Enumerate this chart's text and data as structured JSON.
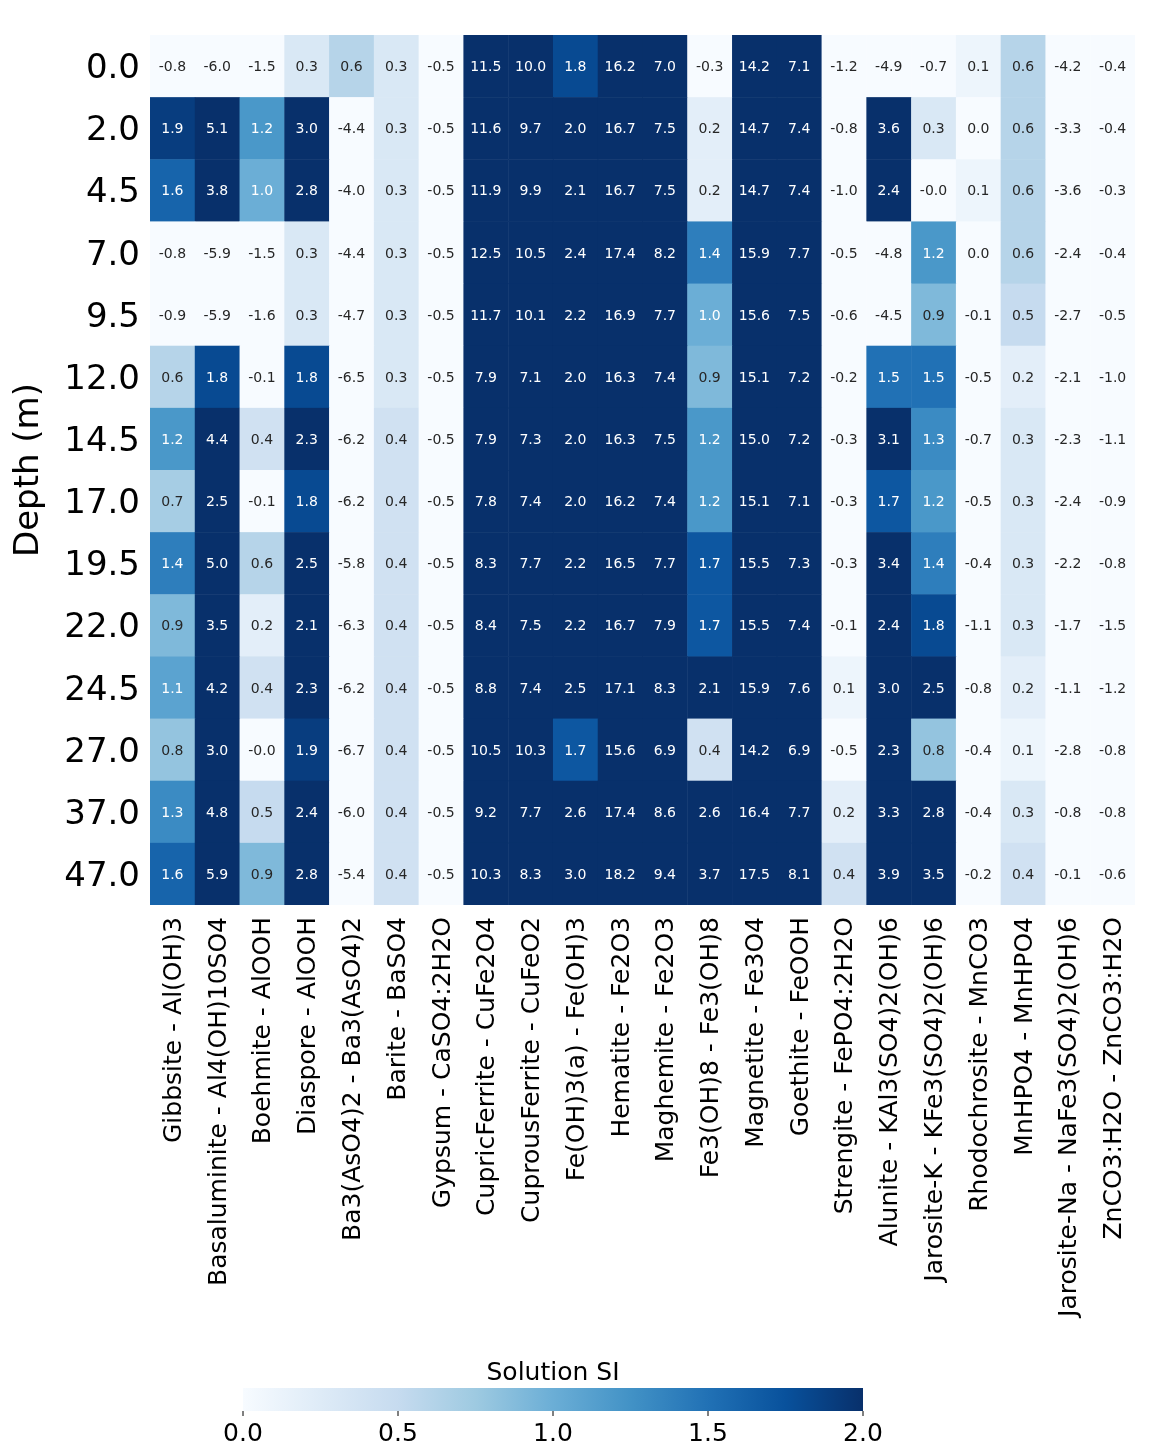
{
  "chart_data": {
    "type": "heatmap",
    "ylabel": "Depth (m)",
    "clabel": "Solution SI",
    "categories": [
      "Gibbsite - Al(OH)3",
      "Basaluminite - Al4(OH)10SO4",
      "Boehmite - AlOOH",
      "Diaspore - AlOOH",
      "Ba3(AsO4)2 - Ba3(AsO4)2",
      "Barite - BaSO4",
      "Gypsum - CaSO4:2H2O",
      "CupricFerrite - CuFe2O4",
      "CuprousFerrite - CuFeO2",
      "Fe(OH)3(a) - Fe(OH)3",
      "Hematite - Fe2O3",
      "Maghemite - Fe2O3",
      "Fe3(OH)8 - Fe3(OH)8",
      "Magnetite - Fe3O4",
      "Goethite - FeOOH",
      "Strengite - FePO4:2H2O",
      "Alunite - KAl3(SO4)2(OH)6",
      "Jarosite-K - KFe3(SO4)2(OH)6",
      "Rhodochrosite - MnCO3",
      "MnHPO4 - MnHPO4",
      "Jarosite-Na - NaFe3(SO4)2(OH)6",
      "ZnCO3:H2O - ZnCO3:H2O"
    ],
    "y_categories": [
      "0.0",
      "2.0",
      "4.5",
      "7.0",
      "9.5",
      "12.0",
      "14.5",
      "17.0",
      "19.5",
      "22.0",
      "24.5",
      "27.0",
      "37.0",
      "47.0"
    ],
    "cells": [
      [
        -0.8,
        -6.0,
        -1.5,
        0.3,
        0.6,
        0.3,
        -0.5,
        11.5,
        10.0,
        1.8,
        16.2,
        7.0,
        -0.3,
        14.2,
        7.1,
        -1.2,
        -4.9,
        -0.7,
        0.1,
        0.6,
        -4.2,
        -0.4
      ],
      [
        1.9,
        5.1,
        1.2,
        3.0,
        -4.4,
        0.3,
        -0.5,
        11.6,
        9.7,
        2.0,
        16.7,
        7.5,
        0.2,
        14.7,
        7.4,
        -0.8,
        3.6,
        0.3,
        0.0,
        0.6,
        -3.3,
        -0.4
      ],
      [
        1.6,
        3.8,
        1.0,
        2.8,
        -4.0,
        0.3,
        -0.5,
        11.9,
        9.9,
        2.1,
        16.7,
        7.5,
        0.2,
        14.7,
        7.4,
        -1.0,
        2.4,
        -0.0,
        0.1,
        0.6,
        -3.6,
        -0.3
      ],
      [
        -0.8,
        -5.9,
        -1.5,
        0.3,
        -4.4,
        0.3,
        -0.5,
        12.5,
        10.5,
        2.4,
        17.4,
        8.2,
        1.4,
        15.9,
        7.7,
        -0.5,
        -4.8,
        1.2,
        0.0,
        0.6,
        -2.4,
        -0.4
      ],
      [
        -0.9,
        -5.9,
        -1.6,
        0.3,
        -4.7,
        0.3,
        -0.5,
        11.7,
        10.1,
        2.2,
        16.9,
        7.7,
        1.0,
        15.6,
        7.5,
        -0.6,
        -4.5,
        0.9,
        -0.1,
        0.5,
        -2.7,
        -0.5
      ],
      [
        0.6,
        1.8,
        -0.1,
        1.8,
        -6.5,
        0.3,
        -0.5,
        7.9,
        7.1,
        2.0,
        16.3,
        7.4,
        0.9,
        15.1,
        7.2,
        -0.2,
        1.5,
        1.5,
        -0.5,
        0.2,
        -2.1,
        -1.0
      ],
      [
        1.2,
        4.4,
        0.4,
        2.3,
        -6.2,
        0.4,
        -0.5,
        7.9,
        7.3,
        2.0,
        16.3,
        7.5,
        1.2,
        15.0,
        7.2,
        -0.3,
        3.1,
        1.3,
        -0.7,
        0.3,
        -2.3,
        -1.1
      ],
      [
        0.7,
        2.5,
        -0.1,
        1.8,
        -6.2,
        0.4,
        -0.5,
        7.8,
        7.4,
        2.0,
        16.2,
        7.4,
        1.2,
        15.1,
        7.1,
        -0.3,
        1.7,
        1.2,
        -0.5,
        0.3,
        -2.4,
        -0.9
      ],
      [
        1.4,
        5.0,
        0.6,
        2.5,
        -5.8,
        0.4,
        -0.5,
        8.3,
        7.7,
        2.2,
        16.5,
        7.7,
        1.7,
        15.5,
        7.3,
        -0.3,
        3.4,
        1.4,
        -0.4,
        0.3,
        -2.2,
        -0.8
      ],
      [
        0.9,
        3.5,
        0.2,
        2.1,
        -6.3,
        0.4,
        -0.5,
        8.4,
        7.5,
        2.2,
        16.7,
        7.9,
        1.7,
        15.5,
        7.4,
        -0.1,
        2.4,
        1.8,
        -1.1,
        0.3,
        -1.7,
        -1.5
      ],
      [
        1.1,
        4.2,
        0.4,
        2.3,
        -6.2,
        0.4,
        -0.5,
        8.8,
        7.4,
        2.5,
        17.1,
        8.3,
        2.1,
        15.9,
        7.6,
        0.1,
        3.0,
        2.5,
        -0.8,
        0.2,
        -1.1,
        -1.2
      ],
      [
        0.8,
        3.0,
        -0.0,
        1.9,
        -6.7,
        0.4,
        -0.5,
        10.5,
        10.3,
        1.7,
        15.6,
        6.9,
        0.4,
        14.2,
        6.9,
        -0.5,
        2.3,
        0.8,
        -0.4,
        0.1,
        -2.8,
        -0.8
      ],
      [
        1.3,
        4.8,
        0.5,
        2.4,
        -6.0,
        0.4,
        -0.5,
        9.2,
        7.7,
        2.6,
        17.4,
        8.6,
        2.6,
        16.4,
        7.7,
        0.2,
        3.3,
        2.8,
        -0.4,
        0.3,
        -0.8,
        -0.8
      ],
      [
        1.6,
        5.9,
        0.9,
        2.8,
        -5.4,
        0.4,
        -0.5,
        10.3,
        8.3,
        3.0,
        18.2,
        9.4,
        3.7,
        17.5,
        8.1,
        0.4,
        3.9,
        3.5,
        -0.2,
        0.4,
        -0.1,
        -0.6
      ]
    ],
    "cell_labels": [
      [
        "-0.8",
        "-6.0",
        "-1.5",
        "0.3",
        "0.6",
        "0.3",
        "-0.5",
        "11.5",
        "10.0",
        "1.8",
        "16.2",
        "7.0",
        "-0.3",
        "14.2",
        "7.1",
        "-1.2",
        "-4.9",
        "-0.7",
        "0.1",
        "0.6",
        "-4.2",
        "-0.4"
      ],
      [
        "1.9",
        "5.1",
        "1.2",
        "3.0",
        "-4.4",
        "0.3",
        "-0.5",
        "11.6",
        "9.7",
        "2.0",
        "16.7",
        "7.5",
        "0.2",
        "14.7",
        "7.4",
        "-0.8",
        "3.6",
        "0.3",
        "0.0",
        "0.6",
        "-3.3",
        "-0.4"
      ],
      [
        "1.6",
        "3.8",
        "1.0",
        "2.8",
        "-4.0",
        "0.3",
        "-0.5",
        "11.9",
        "9.9",
        "2.1",
        "16.7",
        "7.5",
        "0.2",
        "14.7",
        "7.4",
        "-1.0",
        "2.4",
        "-0.0",
        "0.1",
        "0.6",
        "-3.6",
        "-0.3"
      ],
      [
        "-0.8",
        "-5.9",
        "-1.5",
        "0.3",
        "-4.4",
        "0.3",
        "-0.5",
        "12.5",
        "10.5",
        "2.4",
        "17.4",
        "8.2",
        "1.4",
        "15.9",
        "7.7",
        "-0.5",
        "-4.8",
        "1.2",
        "0.0",
        "0.6",
        "-2.4",
        "-0.4"
      ],
      [
        "-0.9",
        "-5.9",
        "-1.6",
        "0.3",
        "-4.7",
        "0.3",
        "-0.5",
        "11.7",
        "10.1",
        "2.2",
        "16.9",
        "7.7",
        "1.0",
        "15.6",
        "7.5",
        "-0.6",
        "-4.5",
        "0.9",
        "-0.1",
        "0.5",
        "-2.7",
        "-0.5"
      ],
      [
        "0.6",
        "1.8",
        "-0.1",
        "1.8",
        "-6.5",
        "0.3",
        "-0.5",
        "7.9",
        "7.1",
        "2.0",
        "16.3",
        "7.4",
        "0.9",
        "15.1",
        "7.2",
        "-0.2",
        "1.5",
        "1.5",
        "-0.5",
        "0.2",
        "-2.1",
        "-1.0"
      ],
      [
        "1.2",
        "4.4",
        "0.4",
        "2.3",
        "-6.2",
        "0.4",
        "-0.5",
        "7.9",
        "7.3",
        "2.0",
        "16.3",
        "7.5",
        "1.2",
        "15.0",
        "7.2",
        "-0.3",
        "3.1",
        "1.3",
        "-0.7",
        "0.3",
        "-2.3",
        "-1.1"
      ],
      [
        "0.7",
        "2.5",
        "-0.1",
        "1.8",
        "-6.2",
        "0.4",
        "-0.5",
        "7.8",
        "7.4",
        "2.0",
        "16.2",
        "7.4",
        "1.2",
        "15.1",
        "7.1",
        "-0.3",
        "1.7",
        "1.2",
        "-0.5",
        "0.3",
        "-2.4",
        "-0.9"
      ],
      [
        "1.4",
        "5.0",
        "0.6",
        "2.5",
        "-5.8",
        "0.4",
        "-0.5",
        "8.3",
        "7.7",
        "2.2",
        "16.5",
        "7.7",
        "1.7",
        "15.5",
        "7.3",
        "-0.3",
        "3.4",
        "1.4",
        "-0.4",
        "0.3",
        "-2.2",
        "-0.8"
      ],
      [
        "0.9",
        "3.5",
        "0.2",
        "2.1",
        "-6.3",
        "0.4",
        "-0.5",
        "8.4",
        "7.5",
        "2.2",
        "16.7",
        "7.9",
        "1.7",
        "15.5",
        "7.4",
        "-0.1",
        "2.4",
        "1.8",
        "-1.1",
        "0.3",
        "-1.7",
        "-1.5"
      ],
      [
        "1.1",
        "4.2",
        "0.4",
        "2.3",
        "-6.2",
        "0.4",
        "-0.5",
        "8.8",
        "7.4",
        "2.5",
        "17.1",
        "8.3",
        "2.1",
        "15.9",
        "7.6",
        "0.1",
        "3.0",
        "2.5",
        "-0.8",
        "0.2",
        "-1.1",
        "-1.2"
      ],
      [
        "0.8",
        "3.0",
        "-0.0",
        "1.9",
        "-6.7",
        "0.4",
        "-0.5",
        "10.5",
        "10.3",
        "1.7",
        "15.6",
        "6.9",
        "0.4",
        "14.2",
        "6.9",
        "-0.5",
        "2.3",
        "0.8",
        "-0.4",
        "0.1",
        "-2.8",
        "-0.8"
      ],
      [
        "1.3",
        "4.8",
        "0.5",
        "2.4",
        "-6.0",
        "0.4",
        "-0.5",
        "9.2",
        "7.7",
        "2.6",
        "17.4",
        "8.6",
        "2.6",
        "16.4",
        "7.7",
        "0.2",
        "3.3",
        "2.8",
        "-0.4",
        "0.3",
        "-0.8",
        "-0.8"
      ],
      [
        "1.6",
        "5.9",
        "0.9",
        "2.8",
        "-5.4",
        "0.4",
        "-0.5",
        "10.3",
        "8.3",
        "3.0",
        "18.2",
        "9.4",
        "3.7",
        "17.5",
        "8.1",
        "0.4",
        "3.9",
        "3.5",
        "-0.2",
        "0.4",
        "-0.1",
        "-0.6"
      ]
    ],
    "clim": [
      0,
      2
    ],
    "cticks": [
      {
        "value": 0,
        "label": "0.0"
      },
      {
        "value": 0.5,
        "label": "0.5"
      },
      {
        "value": 1,
        "label": "1.0"
      },
      {
        "value": 1.5,
        "label": "1.5"
      },
      {
        "value": 2,
        "label": "2.0"
      }
    ]
  }
}
